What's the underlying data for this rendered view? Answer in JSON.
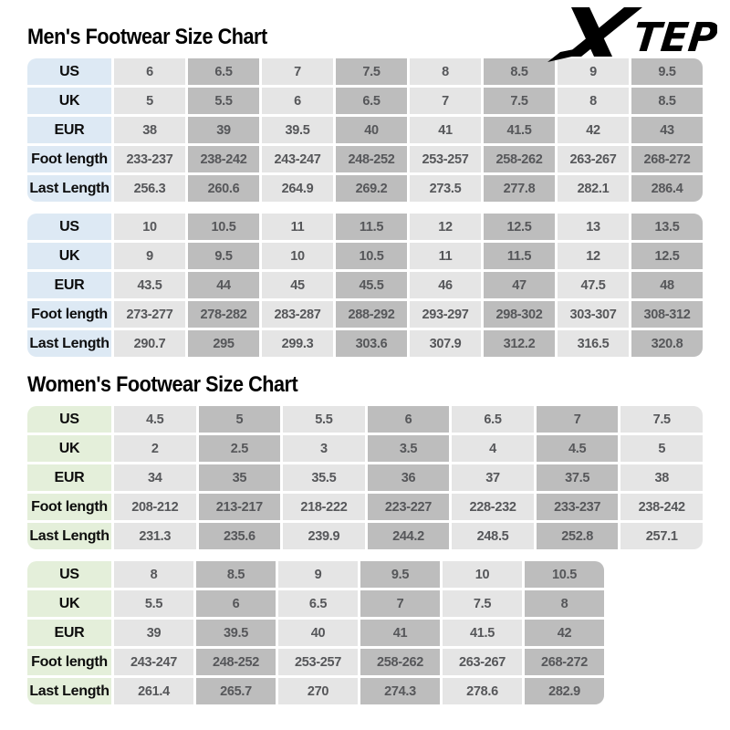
{
  "logo": {
    "brand": "XTEP",
    "tep_text": "TEP",
    "color": "#000000"
  },
  "colors": {
    "page_bg": "#ffffff",
    "men_header_bg": "#dde9f4",
    "women_header_bg": "#e4efda",
    "column_light": "#e5e5e5",
    "column_dark": "#bdbdbd",
    "value_text": "#56575a",
    "label_text": "#0d0d0d",
    "title_text": "#000000"
  },
  "chart_data": [
    {
      "type": "table",
      "title": "Men's Footwear Size Chart",
      "header_bg": "#dde9f4",
      "tables": [
        {
          "rows": [
            {
              "label": "US",
              "values": [
                "6",
                "6.5",
                "7",
                "7.5",
                "8",
                "8.5",
                "9",
                "9.5"
              ]
            },
            {
              "label": "UK",
              "values": [
                "5",
                "5.5",
                "6",
                "6.5",
                "7",
                "7.5",
                "8",
                "8.5"
              ]
            },
            {
              "label": "EUR",
              "values": [
                "38",
                "39",
                "39.5",
                "40",
                "41",
                "41.5",
                "42",
                "43"
              ]
            },
            {
              "label": "Foot length",
              "values": [
                "233-237",
                "238-242",
                "243-247",
                "248-252",
                "253-257",
                "258-262",
                "263-267",
                "268-272"
              ]
            },
            {
              "label": "Last Length",
              "values": [
                "256.3",
                "260.6",
                "264.9",
                "269.2",
                "273.5",
                "277.8",
                "282.1",
                "286.4"
              ]
            }
          ]
        },
        {
          "rows": [
            {
              "label": "US",
              "values": [
                "10",
                "10.5",
                "11",
                "11.5",
                "12",
                "12.5",
                "13",
                "13.5"
              ]
            },
            {
              "label": "UK",
              "values": [
                "9",
                "9.5",
                "10",
                "10.5",
                "11",
                "11.5",
                "12",
                "12.5"
              ]
            },
            {
              "label": "EUR",
              "values": [
                "43.5",
                "44",
                "45",
                "45.5",
                "46",
                "47",
                "47.5",
                "48"
              ]
            },
            {
              "label": "Foot length",
              "values": [
                "273-277",
                "278-282",
                "283-287",
                "288-292",
                "293-297",
                "298-302",
                "303-307",
                "308-312"
              ]
            },
            {
              "label": "Last Length",
              "values": [
                "290.7",
                "295",
                "299.3",
                "303.6",
                "307.9",
                "312.2",
                "316.5",
                "320.8"
              ]
            }
          ]
        }
      ]
    },
    {
      "type": "table",
      "title": "Women's Footwear Size Chart",
      "header_bg": "#e4efda",
      "tables": [
        {
          "rows": [
            {
              "label": "US",
              "values": [
                "4.5",
                "5",
                "5.5",
                "6",
                "6.5",
                "7",
                "7.5"
              ]
            },
            {
              "label": "UK",
              "values": [
                "2",
                "2.5",
                "3",
                "3.5",
                "4",
                "4.5",
                "5"
              ]
            },
            {
              "label": "EUR",
              "values": [
                "34",
                "35",
                "35.5",
                "36",
                "37",
                "37.5",
                "38"
              ]
            },
            {
              "label": "Foot length",
              "values": [
                "208-212",
                "213-217",
                "218-222",
                "223-227",
                "228-232",
                "233-237",
                "238-242"
              ]
            },
            {
              "label": "Last Length",
              "values": [
                "231.3",
                "235.6",
                "239.9",
                "244.2",
                "248.5",
                "252.8",
                "257.1"
              ]
            }
          ]
        },
        {
          "rows": [
            {
              "label": "US",
              "values": [
                "8",
                "8.5",
                "9",
                "9.5",
                "10",
                "10.5"
              ]
            },
            {
              "label": "UK",
              "values": [
                "5.5",
                "6",
                "6.5",
                "7",
                "7.5",
                "8"
              ]
            },
            {
              "label": "EUR",
              "values": [
                "39",
                "39.5",
                "40",
                "41",
                "41.5",
                "42"
              ]
            },
            {
              "label": "Foot length",
              "values": [
                "243-247",
                "248-252",
                "253-257",
                "258-262",
                "263-267",
                "268-272"
              ]
            },
            {
              "label": "Last Length",
              "values": [
                "261.4",
                "265.7",
                "270",
                "274.3",
                "278.6",
                "282.9"
              ]
            }
          ]
        }
      ]
    }
  ]
}
